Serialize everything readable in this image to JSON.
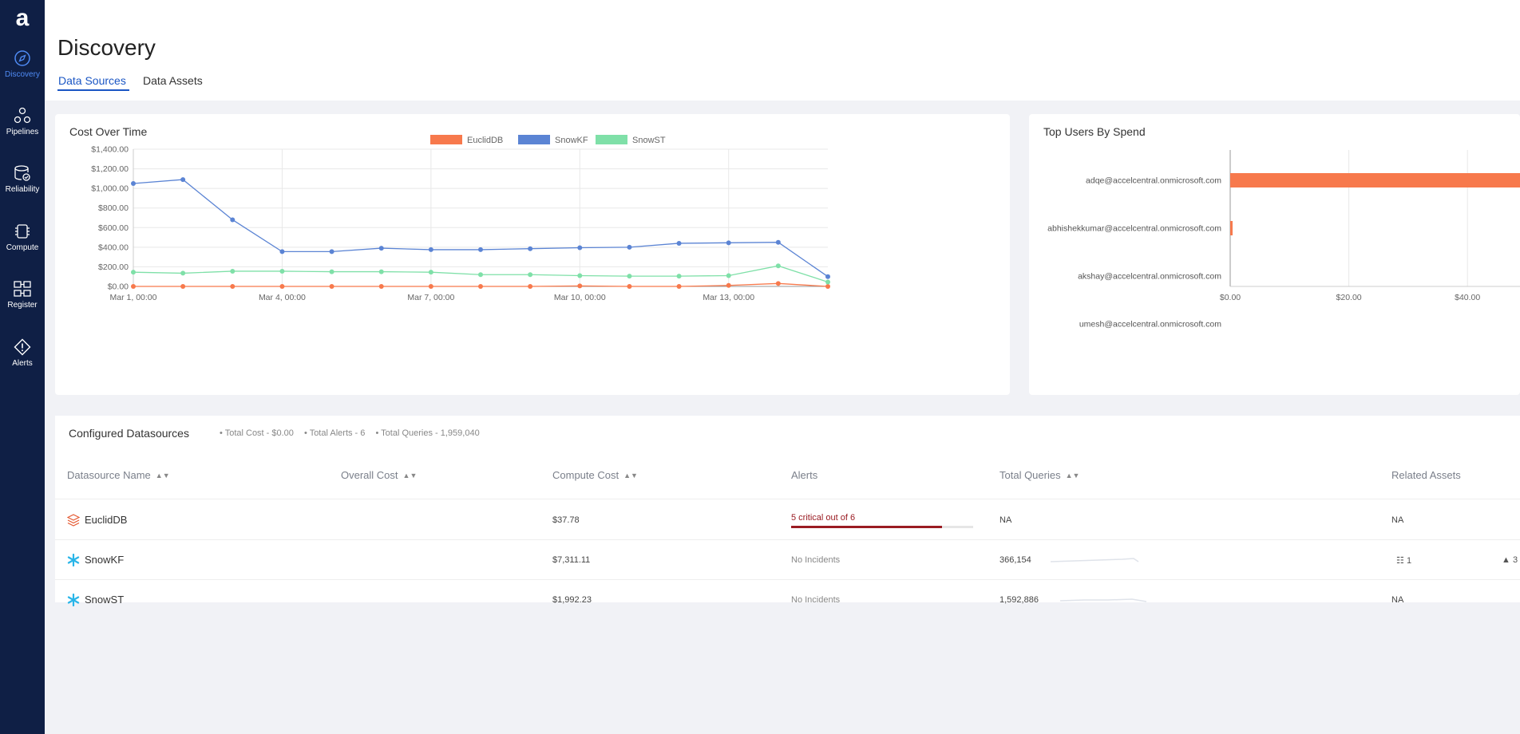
{
  "app": {
    "logo": "a",
    "nav": [
      {
        "label": "Discovery",
        "icon": "compass-icon",
        "active": true
      },
      {
        "label": "Pipelines",
        "icon": "pipelines-icon",
        "active": false
      },
      {
        "label": "Reliability",
        "icon": "reliability-icon",
        "active": false
      },
      {
        "label": "Compute",
        "icon": "chip-icon",
        "active": false
      },
      {
        "label": "Register",
        "icon": "register-icon",
        "active": false
      },
      {
        "label": "Alerts",
        "icon": "alert-icon",
        "active": false
      }
    ]
  },
  "header": {
    "title": "Discovery",
    "tabs": [
      {
        "label": "Data Sources",
        "active": true
      },
      {
        "label": "Data Assets",
        "active": false
      }
    ]
  },
  "cost_chart": {
    "title": "Cost Over Time"
  },
  "users_chart": {
    "title": "Top Users By Spend"
  },
  "chart_data": [
    {
      "type": "line",
      "title": "Cost Over Time",
      "xlabel": "",
      "ylabel": "",
      "x_tick_labels": [
        "Mar 1, 00:00",
        "Mar 4, 00:00",
        "Mar 7, 00:00",
        "Mar 10, 00:00",
        "Mar 13, 00:00"
      ],
      "y_tick_labels": [
        "$0.00",
        "$200.00",
        "$400.00",
        "$600.00",
        "$800.00",
        "$1,000.00",
        "$1,200.00",
        "$1,400.00"
      ],
      "x": [
        0,
        1,
        2,
        3,
        4,
        5,
        6,
        7,
        8,
        9,
        10,
        11,
        12,
        13,
        14
      ],
      "ylim": [
        0,
        1400
      ],
      "legend_position": "top-center",
      "grid": true,
      "series": [
        {
          "name": "EuclidDB",
          "color": "#f7794c",
          "values": [
            0,
            0,
            0,
            0,
            0,
            0,
            0,
            0,
            0,
            5,
            0,
            0,
            10,
            30,
            0
          ]
        },
        {
          "name": "SnowKF",
          "color": "#5b84d4",
          "values": [
            1050,
            1090,
            680,
            355,
            355,
            390,
            375,
            375,
            385,
            395,
            400,
            440,
            445,
            450,
            100
          ]
        },
        {
          "name": "SnowST",
          "color": "#7fe0a8",
          "values": [
            145,
            135,
            155,
            155,
            150,
            150,
            145,
            120,
            120,
            110,
            105,
            105,
            110,
            210,
            45
          ]
        }
      ]
    },
    {
      "type": "bar",
      "orientation": "horizontal",
      "title": "Top Users By Spend",
      "categories": [
        "adqe@accelcentral.onmicrosoft.com",
        "abhishekkumar@accelcentral.onmicrosoft.com",
        "akshay@accelcentral.onmicrosoft.com",
        "umesh@accelcentral.onmicrosoft.com"
      ],
      "values": [
        50,
        0.4,
        0,
        0
      ],
      "x_tick_labels": [
        "$0.00",
        "$20.00",
        "$40.00"
      ],
      "color": "#f7794c",
      "grid": true
    }
  ],
  "datasources": {
    "title": "Configured Datasources",
    "stats": [
      "• Total Cost - $0.00",
      "• Total Alerts - 6",
      "• Total Queries - 1,959,040"
    ],
    "columns": [
      "Datasource Name",
      "Overall Cost",
      "Compute Cost",
      "Alerts",
      "Total Queries",
      "Related Assets"
    ],
    "rows": [
      {
        "name": "EuclidDB",
        "icon": "euclid-db-icon",
        "overall_cost": "",
        "compute_cost": "$37.78",
        "alerts": "5 critical out of 6",
        "alert_fraction": 0.83,
        "total_queries": "NA",
        "related_assets": "NA",
        "related_a": "",
        "related_b": ""
      },
      {
        "name": "SnowKF",
        "icon": "snowflake-icon",
        "overall_cost": "",
        "compute_cost": "$7,311.11",
        "alerts": "No Incidents",
        "alert_fraction": 0,
        "total_queries": "366,154",
        "related_assets": "",
        "related_a": "1",
        "related_b": "3"
      },
      {
        "name": "SnowST",
        "icon": "snowflake-icon",
        "overall_cost": "",
        "compute_cost": "$1,992.23",
        "alerts": "No Incidents",
        "alert_fraction": 0,
        "total_queries": "1,592,886",
        "related_assets": "NA",
        "related_a": "",
        "related_b": ""
      }
    ]
  }
}
